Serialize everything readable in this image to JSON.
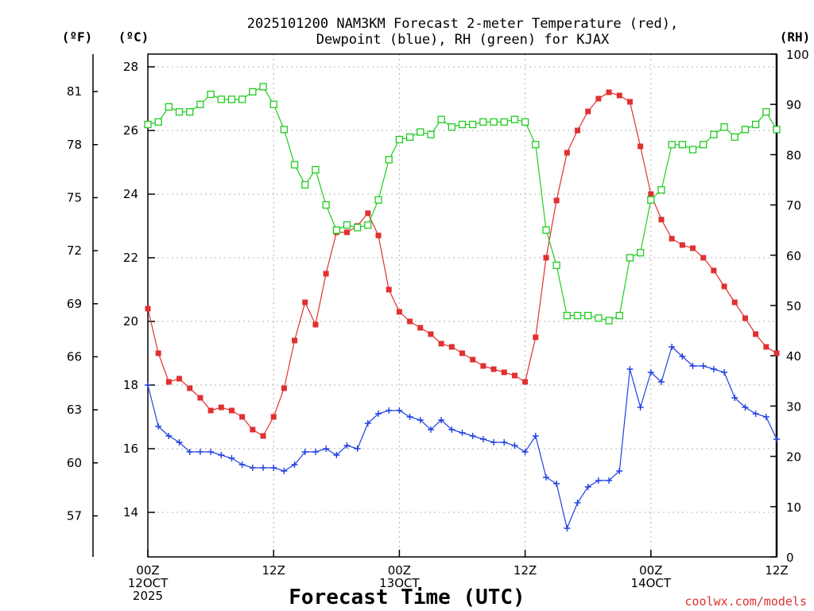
{
  "chart_data": {
    "type": "line",
    "title_line1": "2025101200 NAM3KM Forecast 2-meter Temperature (red),",
    "title_line2": "Dewpoint (blue), RH (green) for KJAX",
    "xlabel": "Forecast Time (UTC)",
    "credit": "coolwx.com/models",
    "unit_f": "(ºF)",
    "unit_c": "(ºC)",
    "unit_rh": "(RH)",
    "hour_range": [
      0,
      60
    ],
    "celsius_range": [
      12.6,
      28.4
    ],
    "rh_range": [
      0,
      100
    ],
    "celsius_ticks": [
      {
        "v": 14,
        "label": "14"
      },
      {
        "v": 16,
        "label": "16"
      },
      {
        "v": 18,
        "label": "18"
      },
      {
        "v": 20,
        "label": "20"
      },
      {
        "v": 22,
        "label": "22"
      },
      {
        "v": 24,
        "label": "24"
      },
      {
        "v": 26,
        "label": "26"
      },
      {
        "v": 28,
        "label": "28"
      }
    ],
    "fahrenheit_ticks": [
      {
        "v": 57,
        "label": "57"
      },
      {
        "v": 60,
        "label": "60"
      },
      {
        "v": 63,
        "label": "63"
      },
      {
        "v": 66,
        "label": "66"
      },
      {
        "v": 69,
        "label": "69"
      },
      {
        "v": 72,
        "label": "72"
      },
      {
        "v": 75,
        "label": "75"
      },
      {
        "v": 78,
        "label": "78"
      },
      {
        "v": 81,
        "label": "81"
      }
    ],
    "rh_ticks": [
      {
        "v": 0,
        "label": "0"
      },
      {
        "v": 10,
        "label": "10"
      },
      {
        "v": 20,
        "label": "20"
      },
      {
        "v": 30,
        "label": "30"
      },
      {
        "v": 40,
        "label": "40"
      },
      {
        "v": 50,
        "label": "50"
      },
      {
        "v": 60,
        "label": "60"
      },
      {
        "v": 70,
        "label": "70"
      },
      {
        "v": 80,
        "label": "80"
      },
      {
        "v": 90,
        "label": "90"
      },
      {
        "v": 100,
        "label": "100"
      }
    ],
    "x_ticks": [
      {
        "hour": 0,
        "lines": [
          "00Z",
          "12OCT",
          "2025"
        ]
      },
      {
        "hour": 12,
        "lines": [
          "12Z"
        ]
      },
      {
        "hour": 24,
        "lines": [
          "00Z",
          "13OCT"
        ]
      },
      {
        "hour": 36,
        "lines": [
          "12Z"
        ]
      },
      {
        "hour": 48,
        "lines": [
          "00Z",
          "14OCT"
        ]
      },
      {
        "hour": 60,
        "lines": [
          "12Z"
        ]
      }
    ],
    "hours": [
      0,
      1,
      2,
      3,
      4,
      5,
      6,
      7,
      8,
      9,
      10,
      11,
      12,
      13,
      14,
      15,
      16,
      17,
      18,
      19,
      20,
      21,
      22,
      23,
      24,
      25,
      26,
      27,
      28,
      29,
      30,
      31,
      32,
      33,
      34,
      35,
      36,
      37,
      38,
      39,
      40,
      41,
      42,
      43,
      44,
      45,
      46,
      47,
      48,
      49,
      50,
      51,
      52,
      53,
      54,
      55,
      56,
      57,
      58,
      59,
      60
    ],
    "series": [
      {
        "name": "2-meter Temperature",
        "axis": "celsius",
        "color": "#e03030",
        "marker": "filled-square",
        "values": [
          20.4,
          19.0,
          18.1,
          18.2,
          17.9,
          17.6,
          17.2,
          17.3,
          17.2,
          17.0,
          16.6,
          16.4,
          17.0,
          17.9,
          19.4,
          20.6,
          19.9,
          21.5,
          22.8,
          22.8,
          23.0,
          23.4,
          22.7,
          21.0,
          20.3,
          20.0,
          19.8,
          19.6,
          19.3,
          19.2,
          19.0,
          18.8,
          18.6,
          18.5,
          18.4,
          18.3,
          18.1,
          19.5,
          22.0,
          23.8,
          25.3,
          26.0,
          26.6,
          27.0,
          27.2,
          27.1,
          26.9,
          25.5,
          24.0,
          23.2,
          22.6,
          22.4,
          22.3,
          22.0,
          21.6,
          21.1,
          20.6,
          20.1,
          19.6,
          19.2,
          19.0
        ]
      },
      {
        "name": "Dewpoint",
        "axis": "celsius",
        "color": "#2040e0",
        "marker": "plus",
        "values": [
          18.0,
          16.7,
          16.4,
          16.2,
          15.9,
          15.9,
          15.9,
          15.8,
          15.7,
          15.5,
          15.4,
          15.4,
          15.4,
          15.3,
          15.5,
          15.9,
          15.9,
          16.0,
          15.8,
          16.1,
          16.0,
          16.8,
          17.1,
          17.2,
          17.2,
          17.0,
          16.9,
          16.6,
          16.9,
          16.6,
          16.5,
          16.4,
          16.3,
          16.2,
          16.2,
          16.1,
          15.9,
          16.4,
          15.1,
          14.9,
          13.5,
          14.3,
          14.8,
          15.0,
          15.0,
          15.3,
          18.5,
          17.3,
          18.4,
          18.1,
          19.2,
          18.9,
          18.6,
          18.6,
          18.5,
          18.4,
          17.6,
          17.3,
          17.1,
          17.0,
          16.3
        ]
      },
      {
        "name": "RH",
        "axis": "rh",
        "color": "#20cc20",
        "marker": "open-square",
        "values": [
          86,
          86.5,
          89.5,
          88.5,
          88.5,
          90,
          92,
          91,
          91,
          91,
          92.5,
          93.5,
          90,
          85,
          78,
          74,
          77,
          70,
          65,
          66,
          65.5,
          66,
          71,
          79,
          83,
          83.5,
          84.5,
          84,
          87,
          85.5,
          86,
          86,
          86.5,
          86.5,
          86.5,
          87,
          86.5,
          82,
          65,
          58,
          48,
          48,
          48,
          47.5,
          47,
          48,
          59.5,
          60.5,
          71,
          73,
          82,
          82,
          81,
          82,
          84,
          85.5,
          83.5,
          85,
          86,
          88.5,
          85
        ]
      }
    ]
  }
}
